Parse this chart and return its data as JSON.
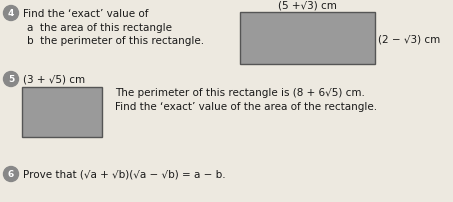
{
  "bg_color": "#ede9e0",
  "rect_color": "#9a9a9a",
  "circle_color": "#888888",
  "text_color": "#1a1a1a",
  "q4_circle": "4",
  "q4_text": "Find the ‘exact’ value of",
  "q4a_text": "a  the area of this rectangle",
  "q4b_text": "b  the perimeter of this rectangle.",
  "q4_top_label": "(5 +√3) cm",
  "q4_right_label": "(2 − √3) cm",
  "q5_circle": "5",
  "q5_left_label": "(3 + √5) cm",
  "q5_text1": "The perimeter of this rectangle is (8 + 6√5) cm.",
  "q5_text2": "Find the ‘exact’ value of the area of the rectangle.",
  "q6_circle": "6",
  "q6_text": "Prove that (√a + √b)(√a − √b) = a − b."
}
